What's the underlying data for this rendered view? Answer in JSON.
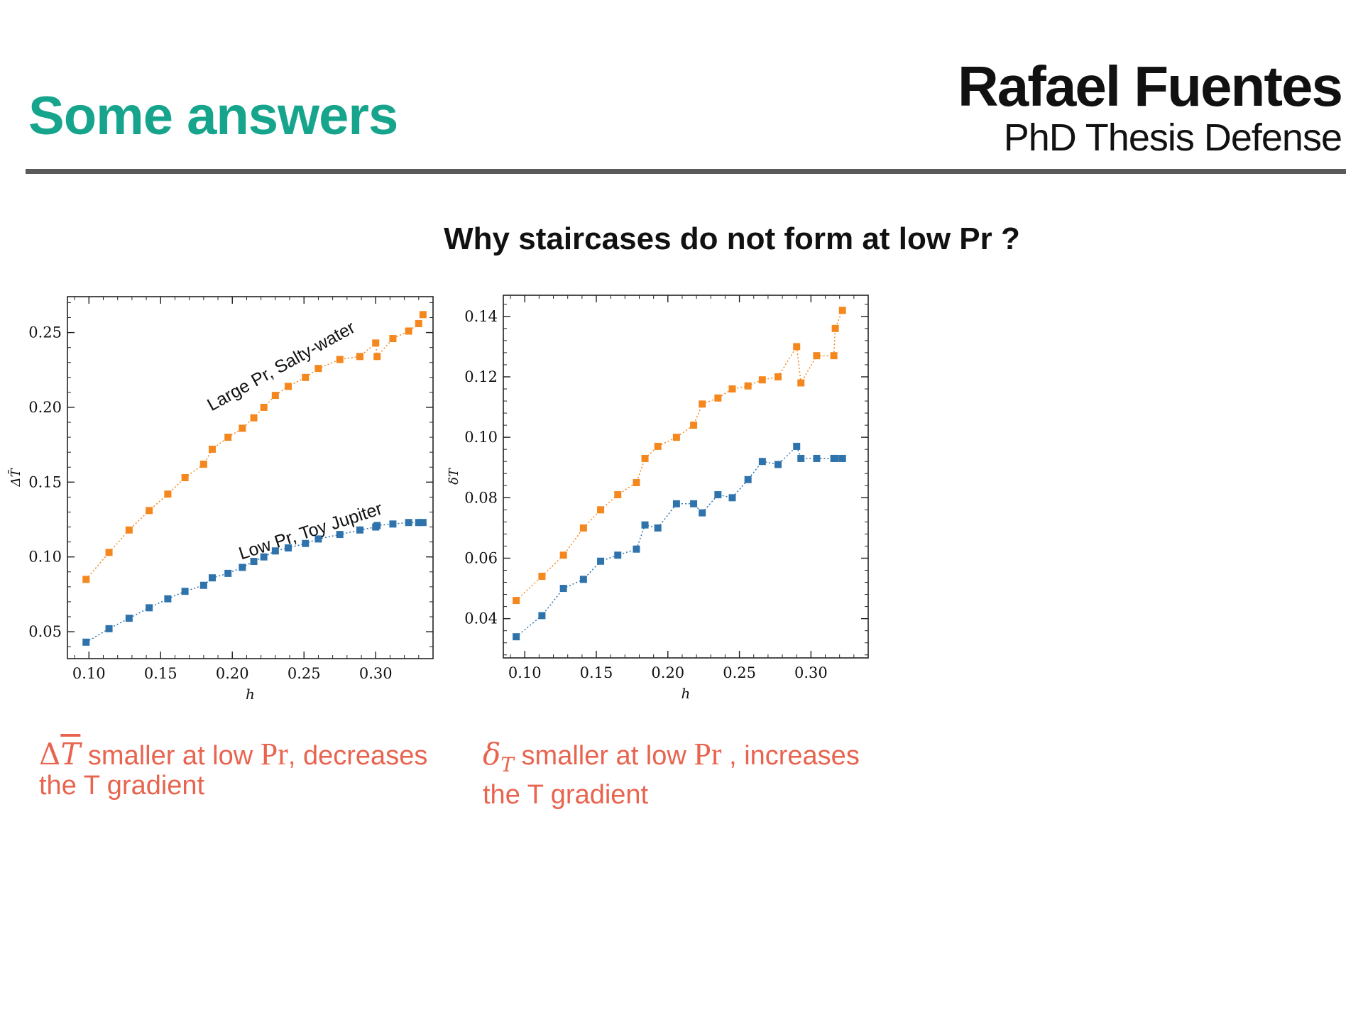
{
  "header": {
    "title": "Some answers",
    "presenter_name": "Rafael Fuentes",
    "presenter_event": "PhD Thesis Defense"
  },
  "subtitle": "Why staircases do not form at low Pr ?",
  "captions": {
    "left": {
      "symbol_main": "T",
      "symbol_prefix": "Δ",
      "text_a": " smaller at low ",
      "pr": "Pr",
      "text_b": ", decreases",
      "line2": "the T gradient"
    },
    "right": {
      "symbol_main": "δ",
      "symbol_sub": "T",
      "text_a": " smaller at low ",
      "pr": "Pr",
      "text_b": " , increases",
      "line2": "the T gradient"
    }
  },
  "colors": {
    "accent": "#16a58c",
    "caption": "#e8644f",
    "orange": "#f5871f",
    "blue": "#2f73ad"
  },
  "chart_data": [
    {
      "type": "scatter",
      "xlabel": "h",
      "ylabel": "ΔT̄",
      "xlim": [
        0.085,
        0.34
      ],
      "ylim": [
        0.032,
        0.274
      ],
      "xticks": [
        0.1,
        0.15,
        0.2,
        0.25,
        0.3
      ],
      "yticks": [
        0.05,
        0.1,
        0.15,
        0.2,
        0.25
      ],
      "xtick_labels": [
        "0.10",
        "0.15",
        "0.20",
        "0.25",
        "0.30"
      ],
      "ytick_labels": [
        "0.05",
        "0.10",
        "0.15",
        "0.20",
        "0.25"
      ],
      "annotations": [
        {
          "text": "Large Pr, Salty-water",
          "series": "orange"
        },
        {
          "text": "Low Pr, Toy Jupiter",
          "series": "blue"
        }
      ],
      "series": [
        {
          "color": "orange",
          "x": [
            0.098,
            0.114,
            0.128,
            0.142,
            0.155,
            0.167,
            0.18,
            0.186,
            0.197,
            0.207,
            0.215,
            0.222,
            0.23,
            0.239,
            0.251,
            0.26,
            0.275,
            0.289,
            0.3,
            0.301,
            0.312,
            0.323,
            0.33,
            0.333
          ],
          "y": [
            0.085,
            0.103,
            0.118,
            0.131,
            0.142,
            0.153,
            0.162,
            0.172,
            0.18,
            0.186,
            0.193,
            0.2,
            0.208,
            0.214,
            0.22,
            0.226,
            0.232,
            0.234,
            0.243,
            0.234,
            0.246,
            0.251,
            0.256,
            0.262
          ]
        },
        {
          "color": "blue",
          "x": [
            0.098,
            0.114,
            0.128,
            0.142,
            0.155,
            0.167,
            0.18,
            0.186,
            0.197,
            0.207,
            0.215,
            0.222,
            0.23,
            0.239,
            0.251,
            0.26,
            0.275,
            0.289,
            0.3,
            0.301,
            0.312,
            0.323,
            0.33,
            0.333
          ],
          "y": [
            0.043,
            0.052,
            0.059,
            0.066,
            0.072,
            0.077,
            0.081,
            0.086,
            0.089,
            0.093,
            0.097,
            0.1,
            0.104,
            0.106,
            0.109,
            0.112,
            0.115,
            0.118,
            0.12,
            0.121,
            0.122,
            0.123,
            0.123,
            0.123
          ]
        }
      ]
    },
    {
      "type": "scatter",
      "xlabel": "h",
      "ylabel": "δT",
      "xlim": [
        0.085,
        0.34
      ],
      "ylim": [
        0.027,
        0.147
      ],
      "xticks": [
        0.1,
        0.15,
        0.2,
        0.25,
        0.3
      ],
      "yticks": [
        0.04,
        0.06,
        0.08,
        0.1,
        0.12,
        0.14
      ],
      "xtick_labels": [
        "0.10",
        "0.15",
        "0.20",
        "0.25",
        "0.30"
      ],
      "ytick_labels": [
        "0.04",
        "0.06",
        "0.08",
        "0.10",
        "0.12",
        "0.14"
      ],
      "series": [
        {
          "color": "orange",
          "x": [
            0.094,
            0.112,
            0.127,
            0.141,
            0.153,
            0.165,
            0.178,
            0.184,
            0.193,
            0.206,
            0.218,
            0.224,
            0.235,
            0.245,
            0.256,
            0.266,
            0.277,
            0.29,
            0.293,
            0.304,
            0.316,
            0.317,
            0.322
          ],
          "y": [
            0.046,
            0.054,
            0.061,
            0.07,
            0.076,
            0.081,
            0.085,
            0.093,
            0.097,
            0.1,
            0.104,
            0.111,
            0.113,
            0.116,
            0.117,
            0.119,
            0.12,
            0.13,
            0.118,
            0.127,
            0.127,
            0.136,
            0.142
          ]
        },
        {
          "color": "blue",
          "x": [
            0.094,
            0.112,
            0.127,
            0.141,
            0.153,
            0.165,
            0.178,
            0.184,
            0.193,
            0.206,
            0.218,
            0.224,
            0.235,
            0.245,
            0.256,
            0.266,
            0.277,
            0.29,
            0.293,
            0.304,
            0.316,
            0.317,
            0.322
          ],
          "y": [
            0.034,
            0.041,
            0.05,
            0.053,
            0.059,
            0.061,
            0.063,
            0.071,
            0.07,
            0.078,
            0.078,
            0.075,
            0.081,
            0.08,
            0.086,
            0.092,
            0.091,
            0.097,
            0.093,
            0.093,
            0.093,
            0.093,
            0.093
          ]
        }
      ]
    }
  ]
}
